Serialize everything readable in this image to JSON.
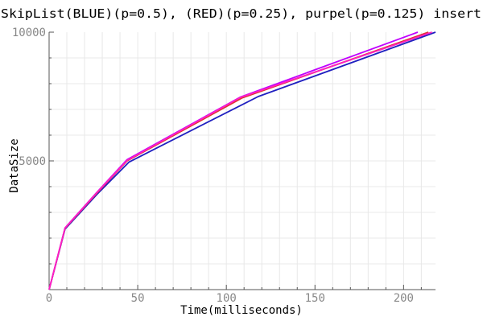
{
  "chart_data": {
    "type": "line",
    "title": "SkipList(BLUE)(p=0.5), (RED)(p=0.25), purpel(p=0.125) insert",
    "xlabel": "Time(milliseconds)",
    "ylabel": "DataSize",
    "xlim": [
      0,
      218
    ],
    "ylim": [
      0,
      10000
    ],
    "x_ticks": [
      0,
      50,
      100,
      150,
      200
    ],
    "y_ticks": [
      5000,
      10000
    ],
    "grid": true,
    "colors": {
      "blue": "#2020c0",
      "red": "#e03030",
      "purple": "#c000ff",
      "magenta": "#ff20c0",
      "grid": "#e8e8e8",
      "axis": "#555555",
      "tick_label": "#888888",
      "text": "#000000"
    },
    "series": [
      {
        "color": "#2020c0",
        "points": [
          [
            0,
            0
          ],
          [
            9,
            2350
          ],
          [
            27,
            3700
          ],
          [
            45,
            4950
          ],
          [
            118,
            7500
          ],
          [
            218,
            10000
          ]
        ]
      },
      {
        "color": "#e03030",
        "points": [
          [
            0,
            0
          ],
          [
            9,
            2380
          ],
          [
            27,
            3750
          ],
          [
            44,
            5000
          ],
          [
            109,
            7450
          ],
          [
            214,
            10000
          ]
        ]
      },
      {
        "color": "#c000ff",
        "points": [
          [
            0,
            0
          ],
          [
            9,
            2400
          ],
          [
            27,
            3780
          ],
          [
            44,
            5050
          ],
          [
            108,
            7480
          ],
          [
            208,
            10000
          ]
        ]
      },
      {
        "color": "#ff20c0",
        "points": [
          [
            0,
            0
          ],
          [
            9,
            2390
          ],
          [
            27,
            3770
          ],
          [
            44,
            5020
          ],
          [
            108,
            7470
          ],
          [
            216,
            10000
          ]
        ]
      }
    ]
  }
}
